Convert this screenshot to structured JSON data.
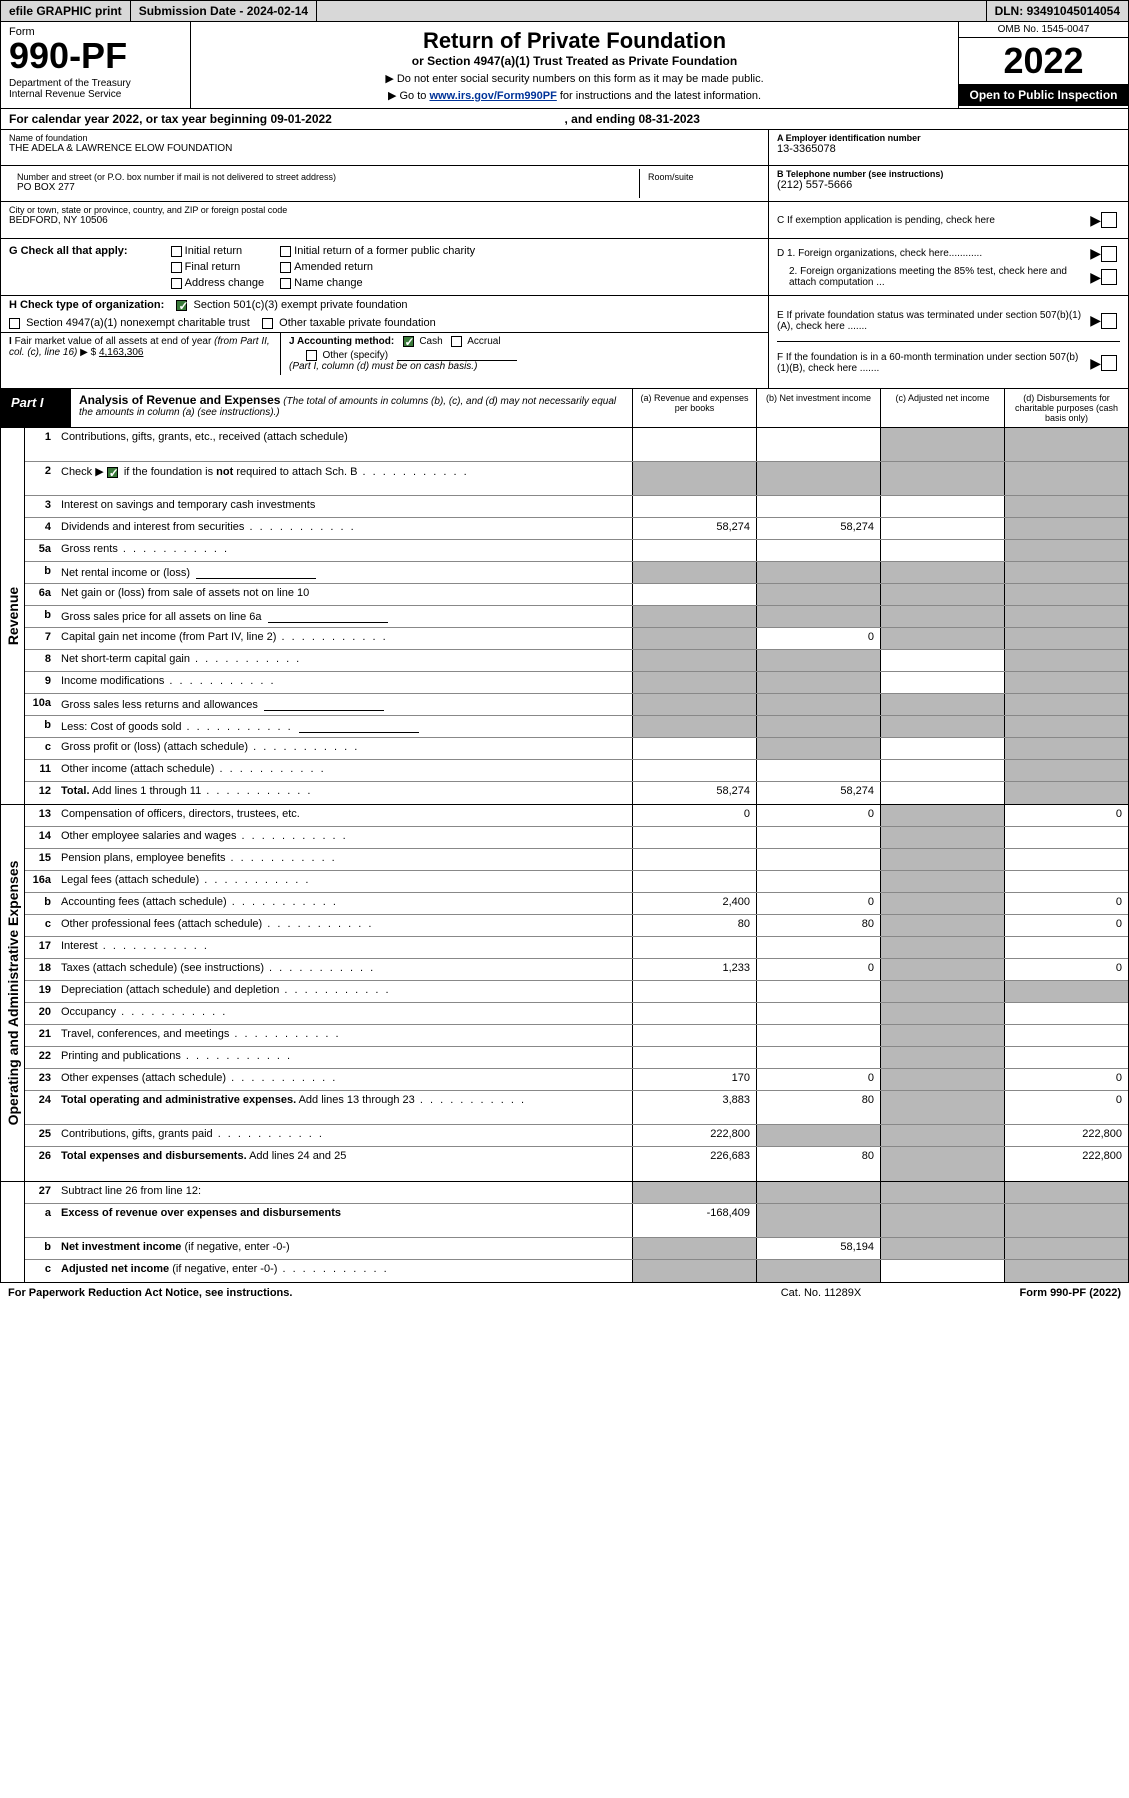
{
  "topbar": {
    "efile": "efile GRAPHIC print",
    "subdate_label": "Submission Date - ",
    "subdate": "2024-02-14",
    "dln_label": "DLN: ",
    "dln": "93491045014054"
  },
  "header": {
    "form_label": "Form",
    "form_number": "990-PF",
    "dept": "Department of the Treasury\nInternal Revenue Service",
    "title": "Return of Private Foundation",
    "subtitle": "or Section 4947(a)(1) Trust Treated as Private Foundation",
    "instr1": "▶ Do not enter social security numbers on this form as it may be made public.",
    "instr2_pre": "▶ Go to ",
    "instr2_link": "www.irs.gov/Form990PF",
    "instr2_post": " for instructions and the latest information.",
    "omb": "OMB No. 1545-0047",
    "year": "2022",
    "open": "Open to Public Inspection"
  },
  "yearline": {
    "text": "For calendar year 2022, or tax year beginning ",
    "begin": "09-01-2022",
    "mid": ", and ending ",
    "end": "08-31-2023"
  },
  "addr": {
    "name_lbl": "Name of foundation",
    "name": "THE ADELA & LAWRENCE ELOW FOUNDATION",
    "street_lbl": "Number and street (or P.O. box number if mail is not delivered to street address)",
    "street": "PO BOX 277",
    "room_lbl": "Room/suite",
    "room": "",
    "city_lbl": "City or town, state or province, country, and ZIP or foreign postal code",
    "city": "BEDFORD, NY  10506",
    "ein_lbl": "A Employer identification number",
    "ein": "13-3365078",
    "phone_lbl": "B Telephone number (see instructions)",
    "phone": "(212) 557-5666",
    "c_lbl": "C If exemption application is pending, check here"
  },
  "g": {
    "label": "G Check all that apply:",
    "opts": {
      "initial": "Initial return",
      "initial_former": "Initial return of a former public charity",
      "final": "Final return",
      "amended": "Amended return",
      "addr": "Address change",
      "name": "Name change"
    }
  },
  "d": {
    "d1": "D 1. Foreign organizations, check here............",
    "d2": "2. Foreign organizations meeting the 85% test, check here and attach computation ...",
    "e": "E  If private foundation status was terminated under section 507(b)(1)(A), check here .......",
    "f": "F  If the foundation is in a 60-month termination under section 507(b)(1)(B), check here ......."
  },
  "h": {
    "label": "H Check type of organization:",
    "opt1": "Section 501(c)(3) exempt private foundation",
    "opt2": "Section 4947(a)(1) nonexempt charitable trust",
    "opt3": "Other taxable private foundation"
  },
  "i": {
    "label": "I Fair market value of all assets at end of year (from Part II, col. (c), line 16)",
    "value": "4,163,306"
  },
  "j": {
    "label": "J Accounting method:",
    "cash": "Cash",
    "accrual": "Accrual",
    "other": "Other (specify)",
    "note": "(Part I, column (d) must be on cash basis.)"
  },
  "part1": {
    "label": "Part I",
    "title": "Analysis of Revenue and Expenses",
    "note": "(The total of amounts in columns (b), (c), and (d) may not necessarily equal the amounts in column (a) (see instructions).)",
    "col_a": "(a)   Revenue and expenses per books",
    "col_b": "(b)   Net investment income",
    "col_c": "(c)   Adjusted net income",
    "col_d": "(d)  Disbursements for charitable purposes (cash basis only)"
  },
  "sections": {
    "revenue": "Revenue",
    "opex": "Operating and Administrative Expenses"
  },
  "lines": [
    {
      "n": "1",
      "d": "Contributions, gifts, grants, etc., received (attach schedule)",
      "a": "",
      "b": "",
      "c": "grey",
      "dd": "grey",
      "tall": true
    },
    {
      "n": "2",
      "d": "Check ▶ ☑ if the foundation is <b>not</b> required to attach Sch. B",
      "dots": true,
      "a": "grey",
      "b": "grey",
      "c": "grey",
      "dd": "grey",
      "tall": true,
      "checkgreen": true
    },
    {
      "n": "3",
      "d": "Interest on savings and temporary cash investments",
      "a": "",
      "b": "",
      "c": "",
      "dd": "grey"
    },
    {
      "n": "4",
      "d": "Dividends and interest from securities",
      "dots": true,
      "a": "58,274",
      "b": "58,274",
      "c": "",
      "dd": "grey"
    },
    {
      "n": "5a",
      "d": "Gross rents",
      "dots": true,
      "a": "",
      "b": "",
      "c": "",
      "dd": "grey"
    },
    {
      "n": "b",
      "d": "Net rental income or (loss)",
      "box": true,
      "a": "grey",
      "b": "grey",
      "c": "grey",
      "dd": "grey"
    },
    {
      "n": "6a",
      "d": "Net gain or (loss) from sale of assets not on line 10",
      "a": "",
      "b": "grey",
      "c": "grey",
      "dd": "grey"
    },
    {
      "n": "b",
      "d": "Gross sales price for all assets on line 6a",
      "box": true,
      "a": "grey",
      "b": "grey",
      "c": "grey",
      "dd": "grey"
    },
    {
      "n": "7",
      "d": "Capital gain net income (from Part IV, line 2)",
      "dots": true,
      "a": "grey",
      "b": "0",
      "c": "grey",
      "dd": "grey"
    },
    {
      "n": "8",
      "d": "Net short-term capital gain",
      "dots": true,
      "a": "grey",
      "b": "grey",
      "c": "",
      "dd": "grey"
    },
    {
      "n": "9",
      "d": "Income modifications",
      "dots": true,
      "a": "grey",
      "b": "grey",
      "c": "",
      "dd": "grey"
    },
    {
      "n": "10a",
      "d": "Gross sales less returns and allowances",
      "box": true,
      "a": "grey",
      "b": "grey",
      "c": "grey",
      "dd": "grey"
    },
    {
      "n": "b",
      "d": "Less: Cost of goods sold",
      "dots": true,
      "box": true,
      "a": "grey",
      "b": "grey",
      "c": "grey",
      "dd": "grey"
    },
    {
      "n": "c",
      "d": "Gross profit or (loss) (attach schedule)",
      "dots": true,
      "a": "",
      "b": "grey",
      "c": "",
      "dd": "grey"
    },
    {
      "n": "11",
      "d": "Other income (attach schedule)",
      "dots": true,
      "a": "",
      "b": "",
      "c": "",
      "dd": "grey"
    },
    {
      "n": "12",
      "d": "<b>Total.</b> Add lines 1 through 11",
      "dots": true,
      "a": "58,274",
      "b": "58,274",
      "c": "",
      "dd": "grey"
    }
  ],
  "oplines": [
    {
      "n": "13",
      "d": "Compensation of officers, directors, trustees, etc.",
      "a": "0",
      "b": "0",
      "c": "grey",
      "dd": "0"
    },
    {
      "n": "14",
      "d": "Other employee salaries and wages",
      "dots": true,
      "a": "",
      "b": "",
      "c": "grey",
      "dd": ""
    },
    {
      "n": "15",
      "d": "Pension plans, employee benefits",
      "dots": true,
      "a": "",
      "b": "",
      "c": "grey",
      "dd": ""
    },
    {
      "n": "16a",
      "d": "Legal fees (attach schedule)",
      "dots": true,
      "a": "",
      "b": "",
      "c": "grey",
      "dd": ""
    },
    {
      "n": "b",
      "d": "Accounting fees (attach schedule)",
      "dots": true,
      "a": "2,400",
      "b": "0",
      "c": "grey",
      "dd": "0"
    },
    {
      "n": "c",
      "d": "Other professional fees (attach schedule)",
      "dots": true,
      "a": "80",
      "b": "80",
      "c": "grey",
      "dd": "0"
    },
    {
      "n": "17",
      "d": "Interest",
      "dots": true,
      "a": "",
      "b": "",
      "c": "grey",
      "dd": ""
    },
    {
      "n": "18",
      "d": "Taxes (attach schedule) (see instructions)",
      "dots": true,
      "a": "1,233",
      "b": "0",
      "c": "grey",
      "dd": "0"
    },
    {
      "n": "19",
      "d": "Depreciation (attach schedule) and depletion",
      "dots": true,
      "a": "",
      "b": "",
      "c": "grey",
      "dd": "grey"
    },
    {
      "n": "20",
      "d": "Occupancy",
      "dots": true,
      "a": "",
      "b": "",
      "c": "grey",
      "dd": ""
    },
    {
      "n": "21",
      "d": "Travel, conferences, and meetings",
      "dots": true,
      "a": "",
      "b": "",
      "c": "grey",
      "dd": ""
    },
    {
      "n": "22",
      "d": "Printing and publications",
      "dots": true,
      "a": "",
      "b": "",
      "c": "grey",
      "dd": ""
    },
    {
      "n": "23",
      "d": "Other expenses (attach schedule)",
      "dots": true,
      "a": "170",
      "b": "0",
      "c": "grey",
      "dd": "0"
    },
    {
      "n": "24",
      "d": "<b>Total operating and administrative expenses.</b> Add lines 13 through 23",
      "dots": true,
      "a": "3,883",
      "b": "80",
      "c": "grey",
      "dd": "0",
      "tall": true
    },
    {
      "n": "25",
      "d": "Contributions, gifts, grants paid",
      "dots": true,
      "a": "222,800",
      "b": "grey",
      "c": "grey",
      "dd": "222,800"
    },
    {
      "n": "26",
      "d": "<b>Total expenses and disbursements.</b> Add lines 24 and 25",
      "a": "226,683",
      "b": "80",
      "c": "grey",
      "dd": "222,800",
      "tall": true
    }
  ],
  "line27": [
    {
      "n": "27",
      "d": "Subtract line 26 from line 12:",
      "a": "grey",
      "b": "grey",
      "c": "grey",
      "dd": "grey"
    },
    {
      "n": "a",
      "d": "<b>Excess of revenue over expenses and disbursements</b>",
      "a": "-168,409",
      "b": "grey",
      "c": "grey",
      "dd": "grey",
      "tall": true
    },
    {
      "n": "b",
      "d": "<b>Net investment income</b> (if negative, enter -0-)",
      "a": "grey",
      "b": "58,194",
      "c": "grey",
      "dd": "grey"
    },
    {
      "n": "c",
      "d": "<b>Adjusted net income</b> (if negative, enter -0-)",
      "dots": true,
      "a": "grey",
      "b": "grey",
      "c": "",
      "dd": "grey"
    }
  ],
  "footer": {
    "left": "For Paperwork Reduction Act Notice, see instructions.",
    "mid": "Cat. No. 11289X",
    "right": "Form 990-PF (2022)"
  }
}
